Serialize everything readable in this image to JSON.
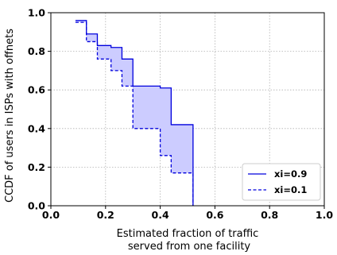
{
  "chart_data": {
    "type": "line",
    "xlabel_lines": [
      "Estimated fraction of traffic",
      "served from one facility"
    ],
    "ylabel": "CCDF of users in ISPs with offnets",
    "xlim": [
      0.0,
      1.0
    ],
    "ylim": [
      0.0,
      1.0
    ],
    "xticks": [
      0.0,
      0.2,
      0.4,
      0.6,
      0.8,
      1.0
    ],
    "yticks": [
      0.0,
      0.2,
      0.4,
      0.6,
      0.8,
      1.0
    ],
    "tick_labels": [
      "0.0",
      "0.2",
      "0.4",
      "0.6",
      "0.8",
      "1.0"
    ],
    "grid": true,
    "step": true,
    "legend_position": "lower-right",
    "fill_between": true,
    "fill_color": "#ccccff",
    "series": [
      {
        "name": "xi=0.9",
        "style": "solid",
        "color": "#0000dd",
        "x": [
          0.09,
          0.13,
          0.17,
          0.22,
          0.26,
          0.3,
          0.4,
          0.44,
          0.52,
          0.52
        ],
        "y": [
          0.96,
          0.89,
          0.83,
          0.82,
          0.76,
          0.62,
          0.61,
          0.42,
          0.31,
          0.0
        ]
      },
      {
        "name": "xi=0.1",
        "style": "dashed",
        "color": "#0000dd",
        "x": [
          0.09,
          0.13,
          0.17,
          0.22,
          0.26,
          0.3,
          0.4,
          0.44,
          0.52,
          0.52
        ],
        "y": [
          0.95,
          0.85,
          0.76,
          0.7,
          0.62,
          0.4,
          0.26,
          0.17,
          0.17,
          0.0
        ]
      }
    ]
  }
}
